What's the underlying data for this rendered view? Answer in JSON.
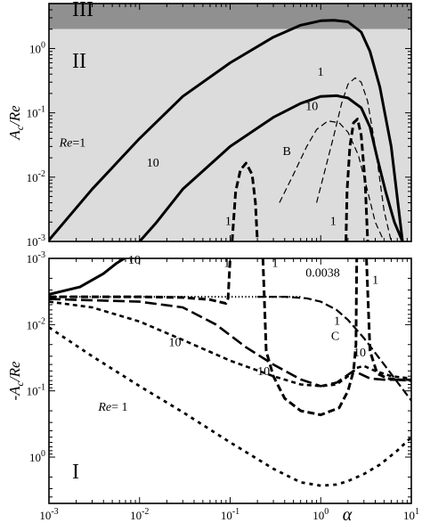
{
  "chart_data": [
    {
      "type": "line",
      "ylabel": "A_c/Re",
      "xlim": [
        0.001,
        10
      ],
      "ylim": [
        0.001,
        5
      ],
      "xscale": "log",
      "yscale": "log",
      "x_ticks": [
        "10^-3",
        "10^-2",
        "10^-1",
        "10^0",
        "10^1"
      ],
      "y_ticks": [
        "10^-3",
        "10^-2",
        "10^-1",
        "10^0"
      ],
      "regions": [
        {
          "label": "III",
          "y_from": 2.0,
          "y_to": 5,
          "color": "#909090"
        },
        {
          "label": "II",
          "y_from": 0.001,
          "y_to": 2.0,
          "color": "#dcdcdc"
        }
      ],
      "series": [
        {
          "label": "Re=1",
          "style": "solid",
          "x": [
            0.001,
            0.003,
            0.01,
            0.03,
            0.1,
            0.3,
            0.6,
            1.0,
            1.4,
            2.0,
            2.8,
            3.5,
            4.5,
            6,
            8
          ],
          "y": [
            0.00105,
            0.0065,
            0.04,
            0.18,
            0.6,
            1.5,
            2.3,
            2.7,
            2.75,
            2.6,
            1.8,
            0.9,
            0.25,
            0.03,
            0.001
          ]
        },
        {
          "label": "10",
          "style": "solid",
          "x": [
            0.01,
            0.015,
            0.03,
            0.1,
            0.3,
            0.6,
            1.0,
            1.5,
            2.0,
            2.8,
            3.5,
            4.2,
            5.2,
            6.5,
            8
          ],
          "y": [
            0.001,
            0.0019,
            0.0065,
            0.03,
            0.085,
            0.14,
            0.18,
            0.185,
            0.17,
            0.12,
            0.06,
            0.02,
            0.006,
            0.002,
            0.001
          ]
        },
        {
          "label": "1",
          "style": "thick-dash",
          "x": [
            0.105,
            0.115,
            0.13,
            0.15,
            0.175,
            0.19,
            0.2
          ],
          "y": [
            0.001,
            0.006,
            0.013,
            0.0165,
            0.011,
            0.004,
            0.001
          ]
        },
        {
          "label": "1",
          "style": "thick-dash",
          "x": [
            1.9,
            1.95,
            2.1,
            2.3,
            2.55,
            2.8,
            3.1,
            3.3
          ],
          "y": [
            0.001,
            0.006,
            0.03,
            0.07,
            0.08,
            0.045,
            0.008,
            0.001
          ]
        },
        {
          "label": "1",
          "style": "thin-dash",
          "x": [
            0.9,
            1.1,
            1.4,
            1.7,
            2.0,
            2.4,
            2.8,
            3.3,
            4.0,
            5.0,
            6.0
          ],
          "y": [
            0.004,
            0.012,
            0.045,
            0.14,
            0.28,
            0.35,
            0.3,
            0.15,
            0.03,
            0.003,
            0.001
          ]
        },
        {
          "label": "10",
          "style": "thin-dash",
          "x": [
            0.35,
            0.5,
            0.7,
            0.9,
            1.2,
            1.6,
            2.0,
            2.6,
            3.3,
            4.0,
            5.0,
            6.5
          ],
          "y": [
            0.004,
            0.011,
            0.03,
            0.055,
            0.075,
            0.07,
            0.05,
            0.022,
            0.006,
            0.002,
            0.001,
            0.001
          ]
        }
      ],
      "annotations": [
        {
          "text": "III",
          "x": 0.0018,
          "y": 3.2
        },
        {
          "text": "II",
          "x": 0.0018,
          "y": 0.5
        },
        {
          "text": "Re=1",
          "x": 0.0013,
          "y": 0.03
        },
        {
          "text": "10",
          "x": 0.012,
          "y": 0.0145
        },
        {
          "text": "1",
          "x": 0.92,
          "y": 0.38
        },
        {
          "text": "10",
          "x": 0.68,
          "y": 0.11
        },
        {
          "text": "B",
          "x": 0.38,
          "y": 0.022
        },
        {
          "text": "1",
          "x": 0.088,
          "y": 0.0018
        },
        {
          "text": "1",
          "x": 1.27,
          "y": 0.0018
        }
      ]
    },
    {
      "type": "line",
      "xlabel": "α",
      "ylabel": "-A_c/Re",
      "xlim": [
        0.001,
        10
      ],
      "ylim": [
        0.001,
        5
      ],
      "xscale": "log",
      "yscale": "log",
      "y_inverted": true,
      "x_ticks": [
        "10^-3",
        "10^-2",
        "10^-1",
        "10^0",
        "10^1"
      ],
      "y_ticks": [
        "10^-3",
        "10^-2",
        "10^-1",
        "10^0"
      ],
      "series": [
        {
          "label": "0.0038",
          "style": "dotted",
          "x": [
            0.001,
            0.003,
            0.01,
            0.03,
            0.1,
            0.3,
            0.6
          ],
          "y": [
            0.0038,
            0.0038,
            0.0038,
            0.0038,
            0.0038,
            0.0038,
            0.0038
          ]
        },
        {
          "label": "C",
          "style": "gray-dash",
          "color": "#a0a0a0",
          "x": [
            0.2,
            0.4,
            0.7,
            1.0,
            1.5,
            2.0,
            3.0,
            5.0,
            10
          ],
          "y": [
            0.0038,
            0.0038,
            0.004,
            0.0045,
            0.006,
            0.0085,
            0.016,
            0.04,
            0.14
          ]
        },
        {
          "label": "10",
          "style": "solid",
          "x": [
            0.001,
            0.0022,
            0.004,
            0.0055,
            0.0068
          ],
          "y": [
            0.0035,
            0.0027,
            0.0017,
            0.0012,
            0.001
          ]
        },
        {
          "label": "1",
          "style": "thick-dash",
          "x": [
            0.001,
            0.003,
            0.01,
            0.03,
            0.06,
            0.08,
            0.09,
            0.095,
            0.1
          ],
          "y": [
            0.0038,
            0.0038,
            0.0038,
            0.0039,
            0.0042,
            0.0046,
            0.0048,
            0.004,
            0.001
          ]
        },
        {
          "label": "1",
          "style": "thick-dash",
          "x": [
            0.23,
            0.25,
            0.3,
            0.4,
            0.6,
            1.0,
            1.6,
            2.0,
            2.3,
            2.45,
            2.5
          ],
          "y": [
            0.001,
            0.025,
            0.06,
            0.13,
            0.2,
            0.23,
            0.18,
            0.1,
            0.05,
            0.02,
            0.001
          ]
        },
        {
          "label": "1",
          "style": "thick-dash",
          "x": [
            3.2,
            3.5,
            4.2,
            5.5,
            7,
            10
          ],
          "y": [
            0.001,
            0.025,
            0.055,
            0.065,
            0.068,
            0.07
          ]
        },
        {
          "label": "10",
          "style": "long-dash",
          "x": [
            0.001,
            0.01,
            0.03,
            0.07,
            0.15,
            0.3,
            0.6,
            1.0,
            1.5,
            1.9,
            2.3,
            2.7,
            3.5,
            5,
            10
          ],
          "y": [
            0.0041,
            0.0045,
            0.0055,
            0.01,
            0.022,
            0.04,
            0.067,
            0.085,
            0.075,
            0.06,
            0.05,
            0.055,
            0.065,
            0.068,
            0.068
          ]
        },
        {
          "label": "10",
          "style": "short-dash",
          "x": [
            0.001,
            0.003,
            0.01,
            0.03,
            0.1,
            0.3,
            0.6,
            1.0,
            1.5,
            2.0,
            2.5,
            3.0,
            4.0,
            6.0,
            10
          ],
          "y": [
            0.0045,
            0.0055,
            0.009,
            0.017,
            0.035,
            0.06,
            0.08,
            0.085,
            0.08,
            0.06,
            0.045,
            0.042,
            0.05,
            0.06,
            0.065
          ]
        },
        {
          "label": "Re=1",
          "style": "dotted-dash",
          "x": [
            0.001,
            0.003,
            0.01,
            0.03,
            0.1,
            0.3,
            0.6,
            1.0,
            1.5,
            2.0,
            3.0,
            4.5,
            7,
            10
          ],
          "y": [
            0.011,
            0.03,
            0.085,
            0.21,
            0.6,
            1.5,
            2.4,
            2.7,
            2.6,
            2.3,
            1.8,
            1.3,
            0.8,
            0.5
          ]
        }
      ],
      "annotations": [
        {
          "text": "10",
          "x": 0.0075,
          "y": 0.0012
        },
        {
          "text": "1",
          "x": 0.085,
          "y": 0.00135
        },
        {
          "text": "1",
          "x": 0.29,
          "y": 0.00135
        },
        {
          "text": "0.0038",
          "x": 0.68,
          "y": 0.0019
        },
        {
          "text": "1",
          "x": 3.7,
          "y": 0.0024
        },
        {
          "text": "1",
          "x": 1.4,
          "y": 0.01
        },
        {
          "text": "C",
          "x": 1.3,
          "y": 0.017
        },
        {
          "text": "10",
          "x": 2.3,
          "y": 0.03
        },
        {
          "text": "10",
          "x": 0.021,
          "y": 0.021
        },
        {
          "text": "10",
          "x": 0.2,
          "y": 0.058
        },
        {
          "text": "Re= 1",
          "x": 0.0035,
          "y": 0.2
        },
        {
          "text": "I",
          "x": 0.0018,
          "y": 2.1
        }
      ]
    }
  ]
}
